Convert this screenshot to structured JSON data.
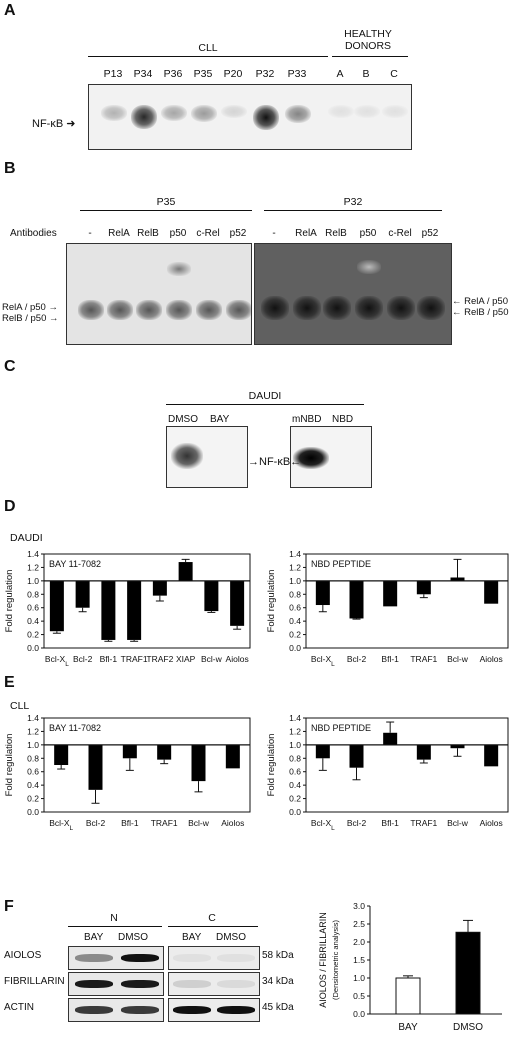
{
  "panels": {
    "a": "A",
    "b": "B",
    "c": "C",
    "d": "D",
    "e": "E",
    "f": "F"
  },
  "panel_a": {
    "group_cll": "CLL",
    "group_healthy_1": "HEALTHY",
    "group_healthy_2": "DONORS",
    "lanes": [
      "P13",
      "P34",
      "P36",
      "P35",
      "P20",
      "P32",
      "P33",
      "A",
      "B",
      "C"
    ],
    "band_label": "NF-κB",
    "band_intensity": [
      0.25,
      0.85,
      0.3,
      0.35,
      0.1,
      0.95,
      0.45,
      0.05,
      0.05,
      0.05
    ]
  },
  "panel_b": {
    "group_left": "P35",
    "group_right": "P32",
    "antibodies_label": "Antibodies",
    "lanes": [
      "-",
      "RelA",
      "RelB",
      "p50",
      "c-Rel",
      "p52"
    ],
    "left_labels": [
      "RelA / p50",
      "RelB / p50"
    ],
    "right_labels": [
      "RelA / p50",
      "RelB / p50"
    ]
  },
  "panel_c": {
    "title": "DAUDI",
    "lanes_left": [
      "DMSO",
      "BAY"
    ],
    "lanes_right": [
      "mNBD",
      "NBD"
    ],
    "band_label": "NF-κB"
  },
  "panel_d": {
    "cell_label": "DAUDI",
    "ylabel": "Fold regulation"
  },
  "panel_e": {
    "cell_label": "CLL",
    "ylabel": "Fold regulation"
  },
  "panel_f": {
    "group_n": "N",
    "group_c": "C",
    "lane_bay": "BAY",
    "lane_dmso": "DMSO",
    "rows": [
      {
        "name": "AIOLOS",
        "size": "58 kDa"
      },
      {
        "name": "FIBRILLARIN",
        "size": "34 kDa"
      },
      {
        "name": "ACTIN",
        "size": "45 kDa"
      }
    ]
  },
  "chart_data": [
    {
      "id": "d_bay",
      "type": "bar",
      "title": "BAY 11-7082",
      "ylabel": "Fold regulation",
      "categories": [
        "Bcl-XL",
        "Bcl-2",
        "Bfl-1",
        "TRAF1",
        "TRAF2",
        "XIAP",
        "Bcl-w",
        "Aiolos"
      ],
      "values": [
        0.25,
        0.6,
        0.12,
        0.12,
        0.78,
        1.28,
        0.55,
        0.33
      ],
      "errors": [
        0.03,
        0.06,
        0.02,
        0.02,
        0.08,
        0.04,
        0.02,
        0.05
      ],
      "ylim": [
        0.0,
        1.4
      ],
      "yticks": [
        0.0,
        0.2,
        0.4,
        0.6,
        0.8,
        1.0,
        1.2,
        1.4
      ],
      "baseline": 1.0
    },
    {
      "id": "d_nbd",
      "type": "bar",
      "title": "NBD PEPTIDE",
      "ylabel": "Fold regulation",
      "categories": [
        "Bcl-XL",
        "Bcl-2",
        "Bfl-1",
        "TRAF1",
        "Bcl-w",
        "Aiolos"
      ],
      "values": [
        0.64,
        0.44,
        0.62,
        0.8,
        1.05,
        0.66
      ],
      "errors": [
        0.1,
        0.01,
        0.0,
        0.05,
        0.27,
        0.0
      ],
      "ylim": [
        0.0,
        1.4
      ],
      "yticks": [
        0.0,
        0.2,
        0.4,
        0.6,
        0.8,
        1.0,
        1.2,
        1.4
      ],
      "baseline": 1.0
    },
    {
      "id": "e_bay",
      "type": "bar",
      "title": "BAY 11-7082",
      "ylabel": "Fold regulation",
      "categories": [
        "Bcl-XL",
        "Bcl-2",
        "Bfl-1",
        "TRAF1",
        "Bcl-w",
        "Aiolos"
      ],
      "values": [
        0.7,
        0.33,
        0.8,
        0.78,
        0.46,
        0.65
      ],
      "errors": [
        0.06,
        0.2,
        0.18,
        0.06,
        0.16,
        0.0
      ],
      "ylim": [
        0.0,
        1.4
      ],
      "yticks": [
        0.0,
        0.2,
        0.4,
        0.6,
        0.8,
        1.0,
        1.2,
        1.4
      ],
      "baseline": 1.0
    },
    {
      "id": "e_nbd",
      "type": "bar",
      "title": "NBD PEPTIDE",
      "ylabel": "Fold regulation",
      "categories": [
        "Bcl-XL",
        "Bcl-2",
        "Bfl-1",
        "TRAF1",
        "Bcl-w",
        "Aiolos"
      ],
      "values": [
        0.8,
        0.66,
        1.18,
        0.78,
        0.95,
        0.68
      ],
      "errors": [
        0.18,
        0.18,
        0.16,
        0.05,
        0.12,
        0.0
      ],
      "ylim": [
        0.0,
        1.4
      ],
      "yticks": [
        0.0,
        0.2,
        0.4,
        0.6,
        0.8,
        1.0,
        1.2,
        1.4
      ],
      "baseline": 1.0
    },
    {
      "id": "f_bar",
      "type": "bar",
      "ylabel": "AIOLOS / FIBRILLARIN",
      "ylabel2": "(Densitometric analysis)",
      "categories": [
        "BAY",
        "DMSO"
      ],
      "values": [
        1.0,
        2.27
      ],
      "errors": [
        0.06,
        0.33
      ],
      "fills": [
        "#ffffff",
        "#000000"
      ],
      "ylim": [
        0.0,
        3.0
      ],
      "yticks": [
        0.0,
        0.5,
        1.0,
        1.5,
        2.0,
        2.5,
        3.0
      ]
    }
  ]
}
